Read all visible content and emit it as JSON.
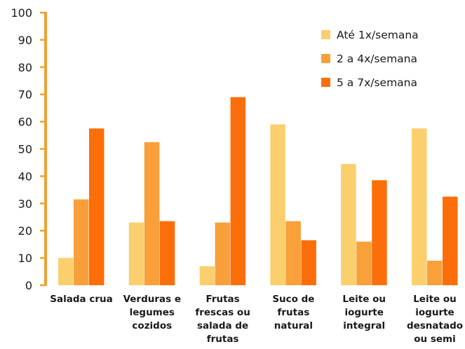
{
  "colors": {
    "axis": "#f0a030",
    "series": [
      "#fbcf6e",
      "#f9a03a",
      "#fb6e0a"
    ]
  },
  "chart_data": {
    "type": "bar",
    "title": "",
    "xlabel": "",
    "ylabel": "",
    "ylim": [
      0,
      100
    ],
    "yticks": [
      0,
      10,
      20,
      30,
      40,
      50,
      60,
      70,
      80,
      90,
      100
    ],
    "grid": false,
    "legend_position": "top-right",
    "categories": [
      [
        "Salada crua"
      ],
      [
        "Verduras e",
        "legumes",
        "cozidos"
      ],
      [
        "Frutas",
        "frescas ou",
        "salada de",
        "frutas"
      ],
      [
        "Suco de",
        "frutas",
        "natural"
      ],
      [
        "Leite ou",
        "iogurte",
        "integral"
      ],
      [
        "Leite ou",
        "iogurte",
        "desnatado",
        "ou semi"
      ]
    ],
    "series": [
      {
        "name": "Até 1x/semana",
        "values": [
          10,
          23,
          7,
          59,
          44.5,
          57.5
        ]
      },
      {
        "name": "2 a 4x/semana",
        "values": [
          31.5,
          52.5,
          23,
          23.5,
          16,
          9
        ]
      },
      {
        "name": "5 a 7x/semana",
        "values": [
          57.5,
          23.5,
          69,
          16.5,
          38.5,
          32.5
        ]
      }
    ]
  }
}
